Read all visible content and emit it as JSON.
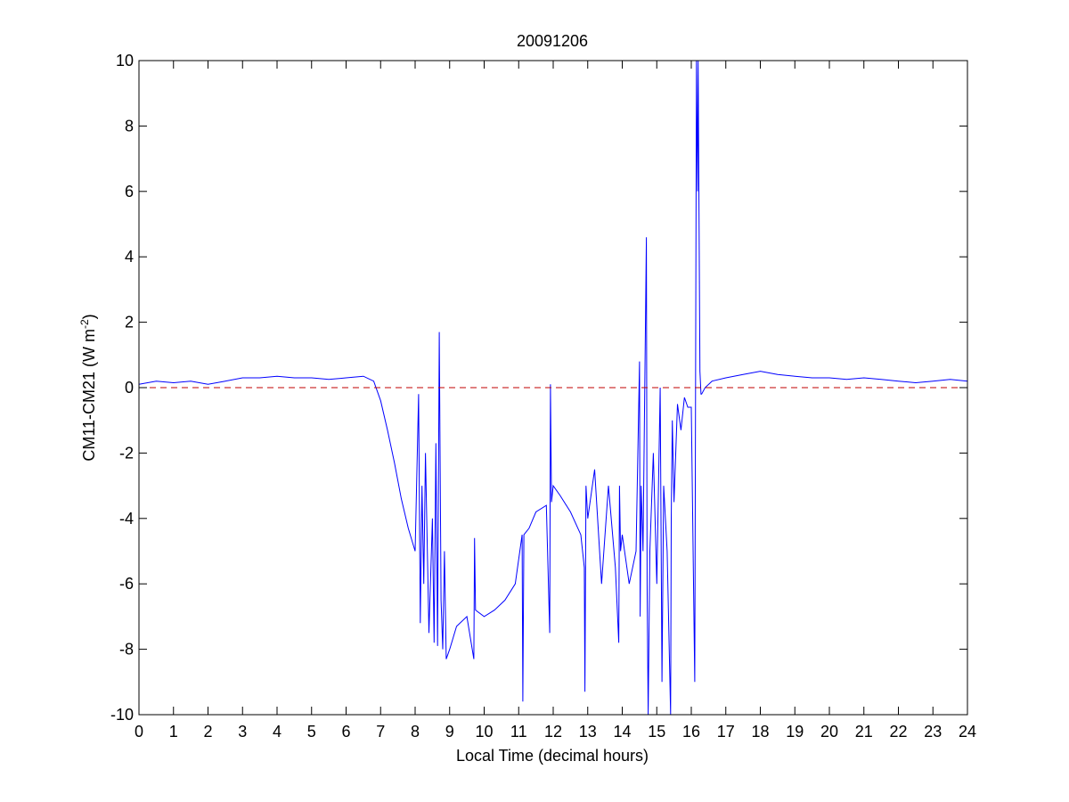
{
  "chart_data": {
    "type": "line",
    "title": "20091206",
    "xlabel": "Local Time (decimal hours)",
    "ylabel_main": "CM11-CM21 (W m",
    "ylabel_sup": "-2",
    "ylabel_close": ")",
    "xlim": [
      0,
      24
    ],
    "ylim": [
      -10,
      10
    ],
    "xticks": [
      0,
      1,
      2,
      3,
      4,
      5,
      6,
      7,
      8,
      9,
      10,
      11,
      12,
      13,
      14,
      15,
      16,
      17,
      18,
      19,
      20,
      21,
      22,
      23,
      24
    ],
    "yticks": [
      -10,
      -8,
      -6,
      -4,
      -2,
      0,
      2,
      4,
      6,
      8,
      10
    ],
    "grid": false,
    "colors": {
      "series": "#0000ff",
      "reference": "#c00000",
      "axes": "#000000"
    },
    "reference_line": {
      "y": 0,
      "style": "dashed"
    },
    "series": [
      {
        "x": [
          0.0,
          0.5,
          1.0,
          1.5,
          2.0,
          2.5,
          3.0,
          3.5,
          4.0,
          4.5,
          5.0,
          5.5,
          6.0,
          6.5,
          6.8,
          7.0,
          7.2,
          7.4,
          7.6,
          7.8,
          8.0,
          8.1,
          8.15,
          8.2,
          8.25,
          8.3,
          8.4,
          8.5,
          8.55,
          8.6,
          8.65,
          8.7,
          8.75,
          8.8,
          8.85,
          8.9,
          9.0,
          9.2,
          9.5,
          9.7,
          9.72,
          9.75,
          10.0,
          10.3,
          10.6,
          10.9,
          11.1,
          11.12,
          11.15,
          11.3,
          11.5,
          11.8,
          11.9,
          11.92,
          11.95,
          12.0,
          12.2,
          12.5,
          12.8,
          12.9,
          12.92,
          12.95,
          13.0,
          13.2,
          13.4,
          13.6,
          13.8,
          13.9,
          13.92,
          13.95,
          14.0,
          14.2,
          14.4,
          14.5,
          14.52,
          14.55,
          14.6,
          14.7,
          14.72,
          14.75,
          14.8,
          14.9,
          15.0,
          15.1,
          15.15,
          15.2,
          15.3,
          15.4,
          15.42,
          15.45,
          15.5,
          15.6,
          15.7,
          15.8,
          15.9,
          16.0,
          16.1,
          16.15,
          16.18,
          16.2,
          16.25,
          16.28,
          16.3,
          16.4,
          16.6,
          17.0,
          17.5,
          18.0,
          18.5,
          19.0,
          19.5,
          20.0,
          20.5,
          21.0,
          21.5,
          22.0,
          22.5,
          23.0,
          23.5,
          24.0
        ],
        "y": [
          0.1,
          0.2,
          0.15,
          0.2,
          0.1,
          0.2,
          0.3,
          0.3,
          0.35,
          0.3,
          0.3,
          0.25,
          0.3,
          0.35,
          0.2,
          -0.4,
          -1.3,
          -2.3,
          -3.4,
          -4.3,
          -5.0,
          -0.2,
          -7.2,
          -3.0,
          -6.0,
          -2.0,
          -7.5,
          -4.0,
          -7.8,
          -1.7,
          -7.9,
          1.7,
          -6.5,
          -8.0,
          -5.0,
          -8.3,
          -8.0,
          -7.3,
          -7.0,
          -8.3,
          -4.6,
          -6.8,
          -7.0,
          -6.8,
          -6.5,
          -6.0,
          -4.5,
          -9.6,
          -4.5,
          -4.3,
          -3.8,
          -3.6,
          -7.5,
          0.1,
          -3.5,
          -3.0,
          -3.3,
          -3.8,
          -4.5,
          -5.5,
          -9.3,
          -3.0,
          -4.0,
          -2.5,
          -6.0,
          -3.0,
          -5.5,
          -7.8,
          -3.0,
          -5.0,
          -4.5,
          -6.0,
          -5.0,
          0.8,
          -7.0,
          -3.0,
          -5.0,
          4.6,
          -6.0,
          -10.0,
          -5.0,
          -2.0,
          -6.0,
          0.0,
          -9.0,
          -3.0,
          -5.0,
          -10.0,
          -4.0,
          -1.0,
          -3.5,
          -0.5,
          -1.3,
          -0.3,
          -0.6,
          -0.6,
          -9.0,
          10.0,
          6.0,
          10.0,
          0.5,
          -0.2,
          -0.2,
          0.0,
          0.2,
          0.3,
          0.4,
          0.5,
          0.4,
          0.35,
          0.3,
          0.3,
          0.25,
          0.3,
          0.25,
          0.2,
          0.15,
          0.2,
          0.25,
          0.2
        ]
      }
    ]
  }
}
